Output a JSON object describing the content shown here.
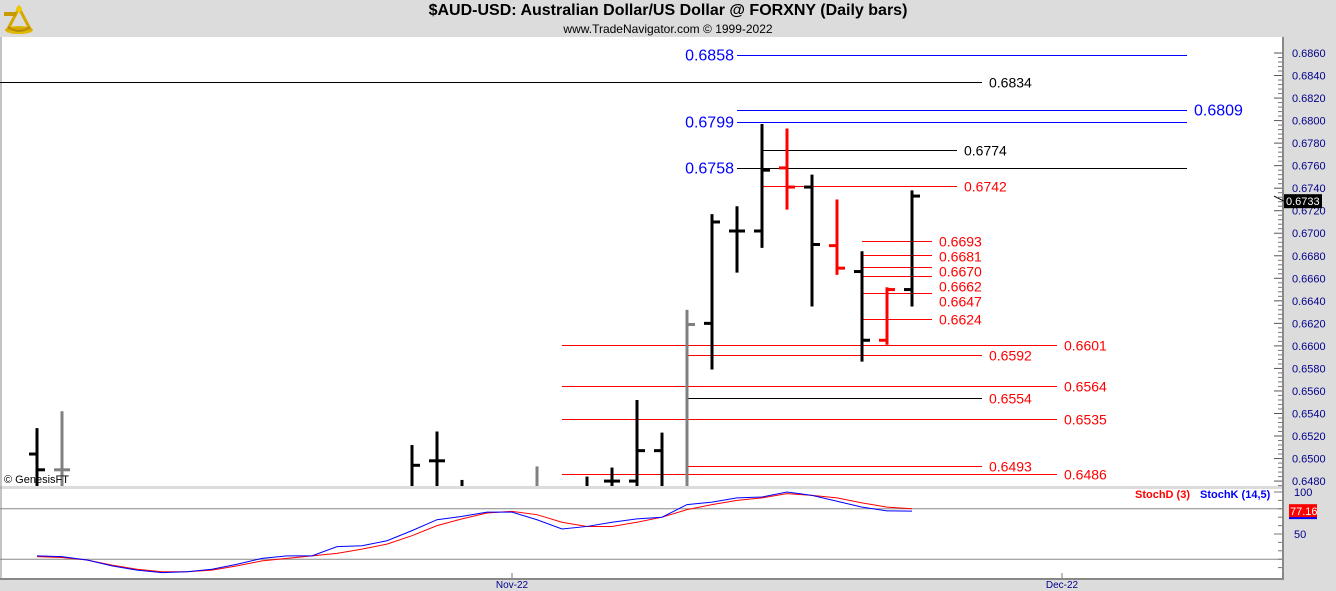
{
  "header": {
    "title": "$AUD-USD:  Australian Dollar/US Dollar @ FORXNY  (Daily bars)",
    "subtitle": "www.TradeNavigator.com © 1999-2022",
    "logo": "sextant-logo"
  },
  "copyright": "© GenesisFT",
  "colors": {
    "up": "#000000",
    "down": "#ff0000",
    "neutral": "#808080",
    "blue": "#0000ff",
    "red": "#ff0000",
    "axis_text": "#00008b"
  },
  "chart_data": {
    "type": "bar",
    "price_axis": {
      "range": [
        0.6475,
        0.687
      ],
      "ticks": [
        "0.6480",
        "0.6500",
        "0.6520",
        "0.6540",
        "0.6560",
        "0.6580",
        "0.6600",
        "0.6620",
        "0.6640",
        "0.6660",
        "0.6680",
        "0.6700",
        "0.6720",
        "0.6740",
        "0.6760",
        "0.6780",
        "0.6800",
        "0.6820",
        "0.6840",
        "0.6860"
      ],
      "last_price": "0.6733"
    },
    "x_labels": [
      {
        "label": "Nov-22",
        "index": 19
      },
      {
        "label": "Dec-22",
        "index": 41
      }
    ],
    "bars": [
      {
        "i": 0,
        "o": 0.6504,
        "h": 0.6527,
        "l": 0.647,
        "c": 0.649,
        "color": "up"
      },
      {
        "i": 1,
        "o": 0.649,
        "h": 0.6542,
        "l": 0.647,
        "c": 0.649,
        "color": "neutral"
      },
      {
        "i": 15,
        "o": null,
        "h": 0.6512,
        "l": 0.647,
        "c": 0.6494,
        "color": "up"
      },
      {
        "i": 16,
        "o": 0.6498,
        "h": 0.6524,
        "l": 0.647,
        "c": 0.6498,
        "color": "up"
      },
      {
        "i": 17,
        "o": null,
        "h": 0.6481,
        "l": 0.647,
        "c": null,
        "color": "up"
      },
      {
        "i": 20,
        "o": null,
        "h": 0.6493,
        "l": 0.647,
        "c": null,
        "color": "neutral"
      },
      {
        "i": 22,
        "o": null,
        "h": 0.6484,
        "l": 0.647,
        "c": null,
        "color": "up"
      },
      {
        "i": 23,
        "o": 0.648,
        "h": 0.6492,
        "l": 0.647,
        "c": 0.648,
        "color": "up"
      },
      {
        "i": 24,
        "o": 0.648,
        "h": 0.6552,
        "l": 0.647,
        "c": 0.6507,
        "color": "up"
      },
      {
        "i": 25,
        "o": 0.6507,
        "h": 0.6523,
        "l": 0.647,
        "c": null,
        "color": "up"
      },
      {
        "i": 26,
        "o": null,
        "h": 0.6632,
        "l": 0.647,
        "c": 0.6619,
        "color": "neutral"
      },
      {
        "i": 27,
        "o": 0.662,
        "h": 0.6717,
        "l": 0.6579,
        "c": 0.671,
        "color": "up"
      },
      {
        "i": 28,
        "o": 0.6702,
        "h": 0.6724,
        "l": 0.6665,
        "c": 0.6702,
        "color": "up"
      },
      {
        "i": 29,
        "o": 0.6702,
        "h": 0.6797,
        "l": 0.6687,
        "c": 0.6756,
        "color": "up"
      },
      {
        "i": 30,
        "o": 0.6758,
        "h": 0.6793,
        "l": 0.6721,
        "c": 0.6741,
        "color": "down"
      },
      {
        "i": 31,
        "o": 0.6741,
        "h": 0.6752,
        "l": 0.6635,
        "c": 0.669,
        "color": "up"
      },
      {
        "i": 32,
        "o": 0.6689,
        "h": 0.673,
        "l": 0.6663,
        "c": 0.6669,
        "color": "down"
      },
      {
        "i": 33,
        "o": 0.6666,
        "h": 0.6684,
        "l": 0.6586,
        "c": 0.6605,
        "color": "up"
      },
      {
        "i": 34,
        "o": 0.6605,
        "h": 0.6652,
        "l": 0.6601,
        "c": 0.665,
        "color": "down"
      },
      {
        "i": 35,
        "o": 0.665,
        "h": 0.6738,
        "l": 0.6635,
        "c": 0.6733,
        "color": "up"
      }
    ],
    "levels": [
      {
        "label": "0.6858",
        "price": 0.6858,
        "line": "blue",
        "text": "blue",
        "from": 28,
        "to": 46,
        "side": "left"
      },
      {
        "label": "0.6834",
        "price": 0.6834,
        "line": "up",
        "text": "up",
        "from": -2,
        "to": 37.8,
        "side": "right"
      },
      {
        "label": "0.6809",
        "price": 0.6809,
        "line": "blue",
        "text": "blue",
        "from": 28,
        "to": 46,
        "side": "right"
      },
      {
        "label": "0.6799",
        "price": 0.6799,
        "line": "blue",
        "text": "blue",
        "from": 28,
        "to": 46,
        "side": "left"
      },
      {
        "label": "0.6774",
        "price": 0.6774,
        "line": "up",
        "text": "up",
        "from": 29,
        "to": 36.8,
        "side": "right"
      },
      {
        "label": "0.6758",
        "price": 0.6758,
        "line": "up",
        "text": "blue",
        "from": 28,
        "to": 46,
        "side": "left"
      },
      {
        "label": "0.6742",
        "price": 0.6742,
        "line": "red",
        "text": "red",
        "from": 29,
        "to": 36.8,
        "side": "right"
      },
      {
        "label": "0.6693",
        "price": 0.6693,
        "line": "red",
        "text": "red",
        "from": 33,
        "to": 35.8,
        "side": "right"
      },
      {
        "label": "0.6681",
        "price": 0.6681,
        "line": "red",
        "text": "red",
        "from": 33,
        "to": 35.8,
        "side": "right"
      },
      {
        "label": "0.6670",
        "price": 0.667,
        "line": "red",
        "text": "red",
        "from": 33,
        "to": 35.8,
        "side": "right"
      },
      {
        "label": "0.6662",
        "price": 0.6662,
        "line": "red",
        "text": "red",
        "from": 33,
        "to": 35.8,
        "side": "right"
      },
      {
        "label": "0.6647",
        "price": 0.6647,
        "line": "red",
        "text": "red",
        "from": 33,
        "to": 35.8,
        "side": "right"
      },
      {
        "label": "0.6624",
        "price": 0.6624,
        "line": "red",
        "text": "red",
        "from": 33,
        "to": 35.8,
        "side": "right"
      },
      {
        "label": "0.6601",
        "price": 0.6601,
        "line": "red",
        "text": "red",
        "from": 21,
        "to": 40.8,
        "side": "right"
      },
      {
        "label": "0.6592",
        "price": 0.6592,
        "line": "red",
        "text": "red",
        "from": 26,
        "to": 37.8,
        "side": "right"
      },
      {
        "label": "0.6564",
        "price": 0.6564,
        "line": "red",
        "text": "red",
        "from": 21,
        "to": 40.8,
        "side": "right"
      },
      {
        "label": "0.6554",
        "price": 0.6554,
        "line": "up",
        "text": "red",
        "from": 26,
        "to": 37.8,
        "side": "right"
      },
      {
        "label": "0.6535",
        "price": 0.6535,
        "line": "red",
        "text": "red",
        "from": 21,
        "to": 40.8,
        "side": "right"
      },
      {
        "label": "0.6493",
        "price": 0.6493,
        "line": "red",
        "text": "red",
        "from": 26,
        "to": 37.8,
        "side": "right"
      },
      {
        "label": "0.6486",
        "price": 0.6486,
        "line": "red",
        "text": "red",
        "from": 21,
        "to": 40.8,
        "side": "right"
      }
    ],
    "stochastic": {
      "range": [
        0,
        100
      ],
      "ticks": [
        "100",
        "50"
      ],
      "reference_lines": [
        80,
        20
      ],
      "last_value": "77.16",
      "series": [
        {
          "name": "StochD (3)",
          "color": "#ff0000",
          "values": [
            23,
            22,
            19,
            13,
            8,
            5,
            5,
            7,
            12,
            18,
            21,
            24,
            27,
            32,
            38,
            48,
            60,
            68,
            75,
            77,
            73,
            64,
            59,
            59,
            64,
            70,
            79,
            85,
            90,
            93,
            98,
            96,
            93,
            87,
            82,
            80
          ]
        },
        {
          "name": "StochK (14,5)",
          "color": "#0000ff",
          "values": [
            24,
            23,
            19,
            12,
            7,
            4,
            5,
            8,
            14,
            21,
            24,
            24,
            35,
            36,
            42,
            54,
            67,
            71,
            76,
            76,
            67,
            56,
            59,
            64,
            68,
            70,
            85,
            88,
            93,
            94,
            100,
            96,
            89,
            82,
            77.5,
            77.16
          ]
        }
      ]
    }
  }
}
